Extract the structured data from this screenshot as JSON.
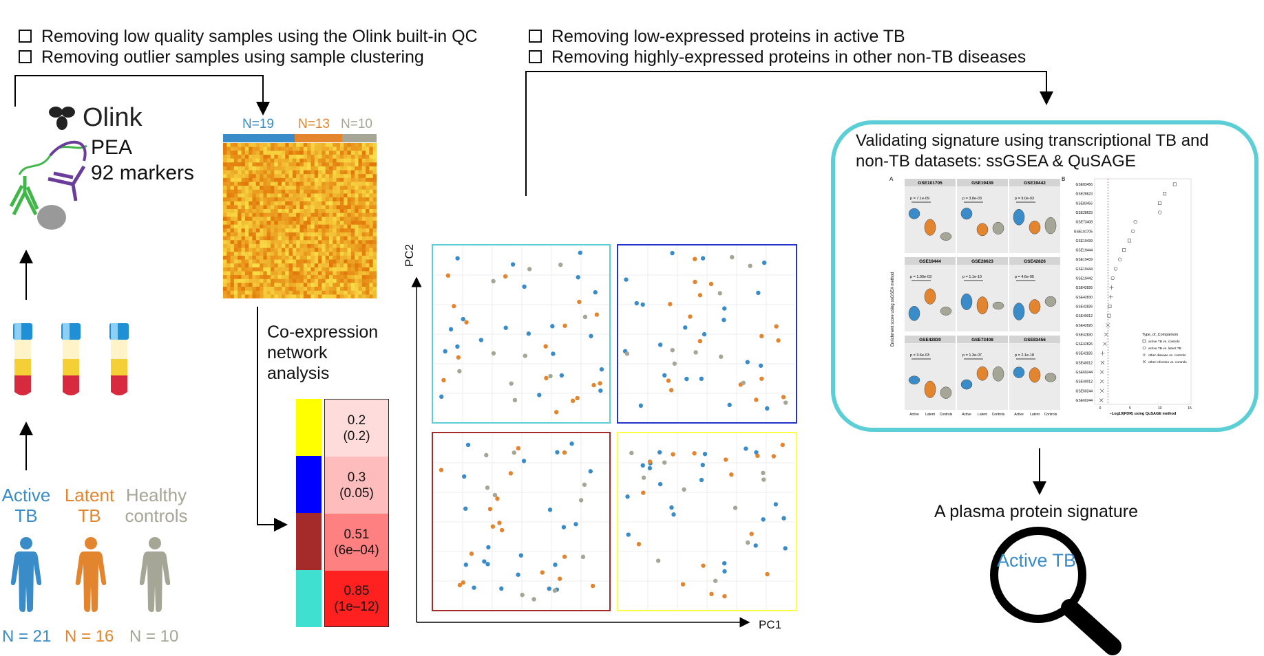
{
  "qc_steps": [
    "Removing low quality samples using the Olink built-in QC",
    "Removing outlier samples using sample clustering"
  ],
  "filter_steps": [
    "Removing low-expressed proteins in active TB",
    "Removing highly-expressed proteins in other non-TB diseases"
  ],
  "olink": {
    "brand": "Olink",
    "assay": "PEA",
    "markers": "92 markers"
  },
  "groups": [
    {
      "label": "Active\nTB",
      "n": "N = 21",
      "color": "#3a8cc8"
    },
    {
      "label": "Latent\nTB",
      "n": "N = 16",
      "color": "#e3852e"
    },
    {
      "label": "Healthy\ncontrols",
      "n": "N = 10",
      "color": "#a6a696"
    }
  ],
  "heatmap": {
    "group_counts": [
      {
        "label": "N=19",
        "color": "#3a8cc8"
      },
      {
        "label": "N=13",
        "color": "#e3852e"
      },
      {
        "label": "N=10",
        "color": "#a6a696"
      }
    ]
  },
  "coexpression": {
    "title": "Co-expression\nnetwork\nanalysis"
  },
  "modules": [
    {
      "color": "#ffff00",
      "value": "0.2",
      "p": "(0.2)",
      "fill": "#ffdcdc"
    },
    {
      "color": "#0000ff",
      "value": "0.3",
      "p": "(0.05)",
      "fill": "#ffbcbc"
    },
    {
      "color": "#a52a2a",
      "value": "0.51",
      "p": "(6e–04)",
      "fill": "#ff8080"
    },
    {
      "color": "#40e0d0",
      "value": "0.85",
      "p": "(1e–12)",
      "fill": "#ff2020"
    }
  ],
  "pca": {
    "xlabel": "PC1",
    "ylabel": "PC2"
  },
  "validation": {
    "title": "Validating signature using transcriptional TB and\nnon-TB datasets: ssGSEA & QuSAGE",
    "panel_a_label": "A",
    "panel_b_label": "B",
    "violin_panels": [
      {
        "gse": "GSE101705",
        "p": "p = 7.1e-09"
      },
      {
        "gse": "GSE19439",
        "p": "p = 3.8e-03"
      },
      {
        "gse": "GSE19442",
        "p": "p = 9.0e-03"
      },
      {
        "gse": "GSE19444",
        "p": "p = 1.00e-03"
      },
      {
        "gse": "GSE28623",
        "p": "p = 1.1e-10"
      },
      {
        "gse": "GSE42826",
        "p": "p = 4.6e-05"
      },
      {
        "gse": "GSE42830",
        "p": "p = 3.6e-03"
      },
      {
        "gse": "GSE73408",
        "p": "p = 1.3e-07"
      },
      {
        "gse": "GSE83456",
        "p": "p = 2.1e-18"
      }
    ],
    "violin_xticks": [
      "Active",
      "Latent",
      "Controls"
    ],
    "violin_ylabel": "Enrichment score using ssGSEA method",
    "qusage_datasets": [
      "GSE83456",
      "GSE28623",
      "GSE83456",
      "GSE28623",
      "GSE73408",
      "GSE101705",
      "GSE19439",
      "GSE19444",
      "GSE19439",
      "GSE19444",
      "GSE19442",
      "GSE42826",
      "GSE42830",
      "GSE42826",
      "GSE40012",
      "GSE42826",
      "GSE42830",
      "GSE42826",
      "GSE42826",
      "GSE40012",
      "GSE60244",
      "GSE40012",
      "GSE60244",
      "GSE60244"
    ],
    "qusage_values": [
      12.5,
      10.8,
      10.0,
      10.0,
      5.9,
      5.5,
      4.9,
      4.0,
      3.3,
      2.6,
      2.1,
      1.9,
      1.8,
      1.6,
      1.5,
      1.3,
      1.0,
      0.8,
      0.4,
      0.4,
      0.3,
      0.3,
      0.3,
      0.2
    ],
    "qusage_markers": [
      "sq",
      "sq",
      "sq",
      "ci",
      "ci",
      "ci",
      "sq",
      "sq",
      "ci",
      "ci",
      "ci",
      "pl",
      "pl",
      "sq",
      "sq",
      "x",
      "x",
      "x",
      "pl",
      "x",
      "x",
      "x",
      "x",
      "x"
    ],
    "qusage_xlabel": "−Log10(FDR) using QuSAGE method",
    "qusage_xticks": [
      "0",
      "5",
      "10",
      "15"
    ],
    "legend_title": "Type_of_Comparison",
    "legend_items": [
      "active TB vs. controls",
      "active TB vs. latent TB",
      "other disease vs. controls",
      "other infection vs. controls"
    ]
  },
  "signature": {
    "title": "A plasma protein signature",
    "label": "Active TB"
  },
  "colors": {
    "active": "#3a8cc8",
    "latent": "#e3852e",
    "healthy": "#a6a696",
    "cyan": "#5ccfd6"
  }
}
